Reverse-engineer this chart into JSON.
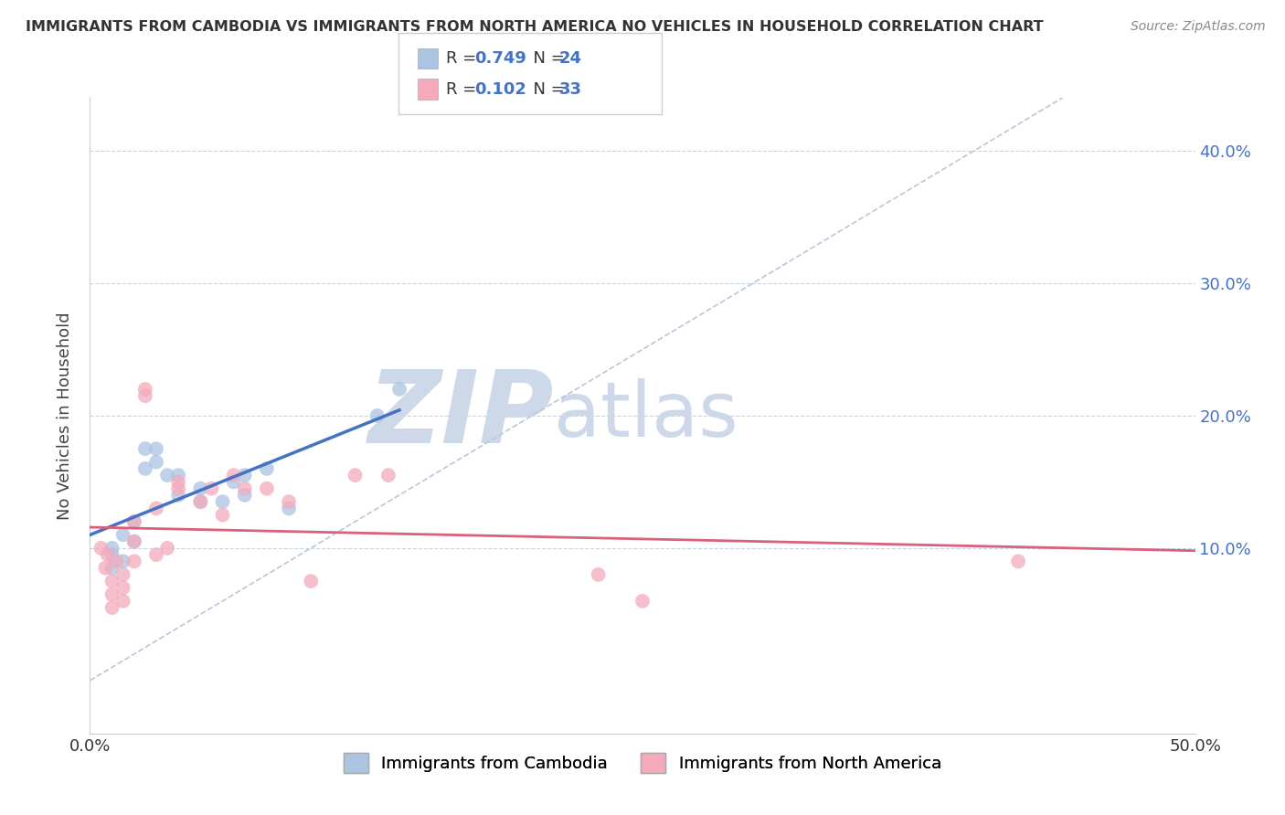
{
  "title": "IMMIGRANTS FROM CAMBODIA VS IMMIGRANTS FROM NORTH AMERICA NO VEHICLES IN HOUSEHOLD CORRELATION CHART",
  "source": "Source: ZipAtlas.com",
  "ylabel": "No Vehicles in Household",
  "xlim": [
    0.0,
    0.5
  ],
  "ylim": [
    -0.04,
    0.44
  ],
  "ytick_vals": [
    0.1,
    0.2,
    0.3,
    0.4
  ],
  "ytick_labels": [
    "10.0%",
    "20.0%",
    "30.0%",
    "40.0%"
  ],
  "legend1_R": "0.749",
  "legend1_N": "24",
  "legend2_R": "0.102",
  "legend2_N": "33",
  "legend1_color": "#aac4e2",
  "legend2_color": "#f4aabb",
  "line1_color": "#4472C4",
  "line2_color": "#d9607a",
  "diagonal_color": "#b8c8d8",
  "watermark_zip": "ZIP",
  "watermark_atlas": "atlas",
  "watermark_color": "#cdd8e8",
  "background_color": "#ffffff",
  "cambodia_x": [
    0.01,
    0.01,
    0.01,
    0.015,
    0.015,
    0.02,
    0.02,
    0.025,
    0.025,
    0.03,
    0.03,
    0.035,
    0.04,
    0.04,
    0.05,
    0.05,
    0.06,
    0.065,
    0.07,
    0.07,
    0.08,
    0.09,
    0.13,
    0.14
  ],
  "cambodia_y": [
    0.1,
    0.095,
    0.085,
    0.11,
    0.09,
    0.12,
    0.105,
    0.175,
    0.16,
    0.175,
    0.165,
    0.155,
    0.155,
    0.14,
    0.145,
    0.135,
    0.135,
    0.15,
    0.155,
    0.14,
    0.16,
    0.13,
    0.2,
    0.22
  ],
  "north_america_x": [
    0.005,
    0.007,
    0.008,
    0.01,
    0.01,
    0.01,
    0.012,
    0.015,
    0.015,
    0.015,
    0.02,
    0.02,
    0.02,
    0.025,
    0.025,
    0.03,
    0.03,
    0.035,
    0.04,
    0.04,
    0.05,
    0.055,
    0.06,
    0.065,
    0.07,
    0.08,
    0.09,
    0.1,
    0.12,
    0.135,
    0.23,
    0.25,
    0.42
  ],
  "north_america_y": [
    0.1,
    0.085,
    0.095,
    0.075,
    0.065,
    0.055,
    0.09,
    0.08,
    0.07,
    0.06,
    0.12,
    0.105,
    0.09,
    0.22,
    0.215,
    0.13,
    0.095,
    0.1,
    0.15,
    0.145,
    0.135,
    0.145,
    0.125,
    0.155,
    0.145,
    0.145,
    0.135,
    0.075,
    0.155,
    0.155,
    0.08,
    0.06,
    0.09
  ],
  "legend_bottom_labels": [
    "Immigrants from Cambodia",
    "Immigrants from North America"
  ],
  "legend_bottom_colors": [
    "#aac4e2",
    "#f4aabb"
  ],
  "point_size": 130,
  "point_alpha": 0.75
}
